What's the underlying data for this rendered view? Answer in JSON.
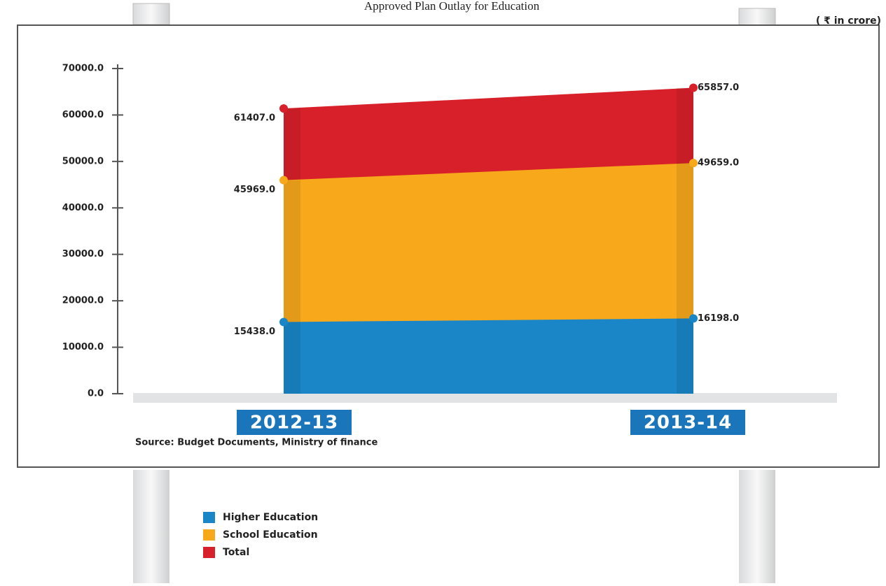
{
  "chart_data": {
    "type": "area",
    "title": "Approved Plan Outlay for Education",
    "unit": "( ₹ in crore)",
    "source": "Source: Budget Documents, Ministry of finance",
    "categories": [
      "2012-13",
      "2013-14"
    ],
    "series": [
      {
        "name": "Higher Education",
        "color": "#1a86c8",
        "values": [
          15438,
          16198
        ],
        "value_labels": [
          "15438.0",
          "16198.0"
        ]
      },
      {
        "name": "School Education",
        "color": "#f7a81b",
        "values": [
          45969,
          49659
        ],
        "value_labels": [
          "45969.0",
          "49659.0"
        ]
      },
      {
        "name": "Total",
        "color": "#d8202a",
        "values": [
          61407,
          65857
        ],
        "value_labels": [
          "61407.0",
          "65857.0"
        ]
      }
    ],
    "ylim": [
      0,
      70000
    ],
    "yticks": [
      {
        "value": 0,
        "label": "0.0"
      },
      {
        "value": 10000,
        "label": "10000.0"
      },
      {
        "value": 20000,
        "label": "20000.0"
      },
      {
        "value": 30000,
        "label": "30000.0"
      },
      {
        "value": 40000,
        "label": "40000.0"
      },
      {
        "value": 50000,
        "label": "50000.0"
      },
      {
        "value": 60000,
        "label": "60000.0"
      },
      {
        "value": 70000,
        "label": "70000.0"
      }
    ]
  }
}
